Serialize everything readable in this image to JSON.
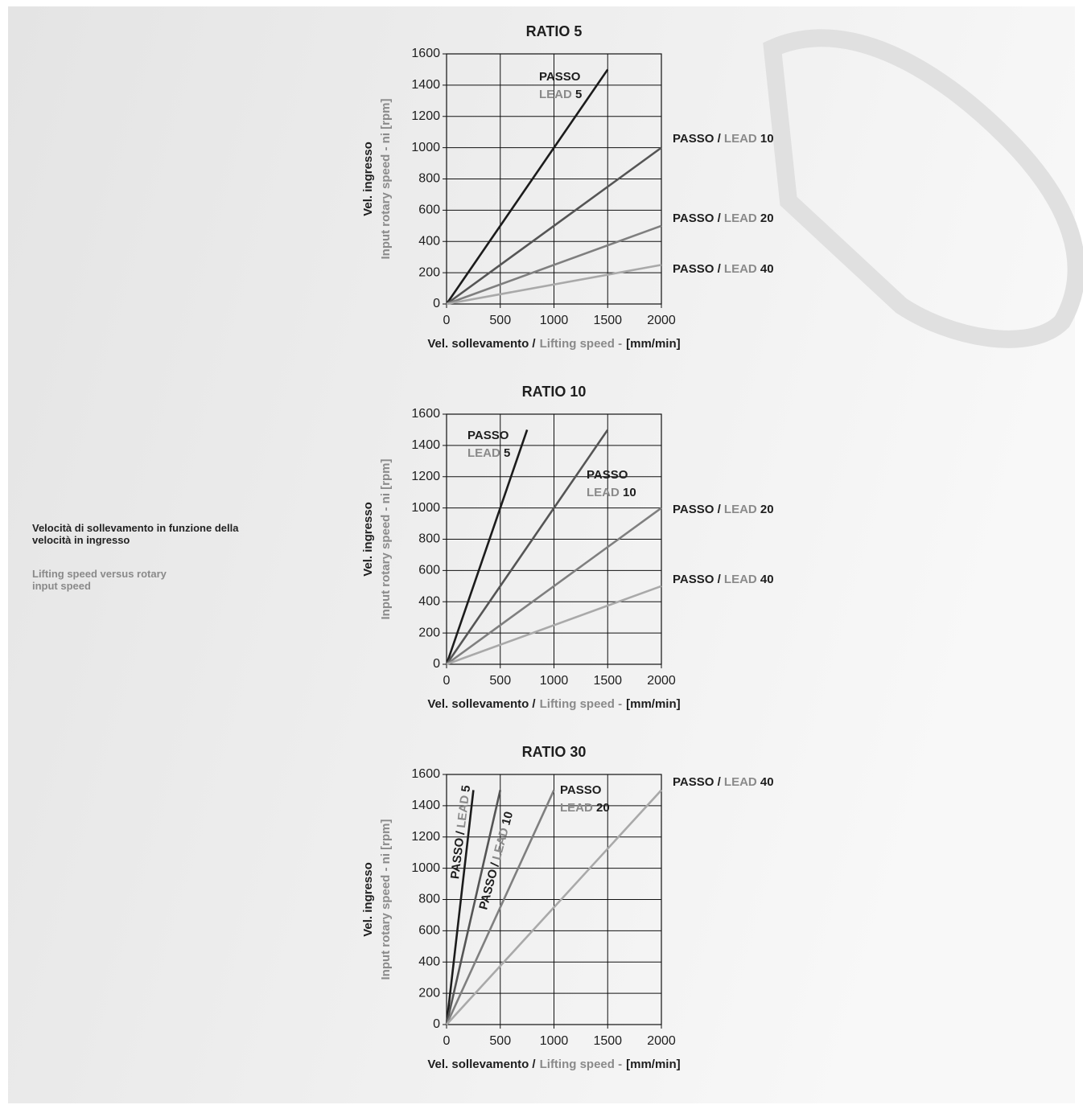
{
  "description": {
    "it": "Velocità di sollevamento in funzione della velocità in ingresso",
    "en": "Lifting speed versus rotary input speed"
  },
  "chart_data": [
    {
      "type": "line",
      "title": "RATIO 5",
      "xlabel": [
        "Vel. sollevamento /",
        "Lifting speed -",
        "[mm/min]"
      ],
      "ylabel": [
        "Vel. ingresso",
        "Input rotary speed - ni [rpm]"
      ],
      "xlim": [
        0,
        2000
      ],
      "ylim": [
        0,
        1600
      ],
      "xticks": [
        0,
        500,
        1000,
        1500,
        2000
      ],
      "yticks": [
        0,
        200,
        400,
        600,
        800,
        1000,
        1200,
        1400,
        1600
      ],
      "grid": true,
      "series": [
        {
          "name": "PASSO LEAD 5",
          "color": "#1c1c1c",
          "x": [
            0,
            1500
          ],
          "values": [
            0,
            1500
          ]
        },
        {
          "name": "PASSO / LEAD 10",
          "color": "#555555",
          "x": [
            0,
            2000
          ],
          "values": [
            0,
            1000
          ]
        },
        {
          "name": "PASSO / LEAD 20",
          "color": "#7f7f7f",
          "x": [
            0,
            2000
          ],
          "values": [
            0,
            500
          ]
        },
        {
          "name": "PASSO / LEAD 40",
          "color": "#a9a9a9",
          "x": [
            0,
            2000
          ],
          "values": [
            0,
            250
          ]
        }
      ]
    },
    {
      "type": "line",
      "title": "RATIO 10",
      "xlabel": [
        "Vel. sollevamento /",
        "Lifting speed -",
        "[mm/min]"
      ],
      "ylabel": [
        "Vel. ingresso",
        "Input rotary speed - ni [rpm]"
      ],
      "xlim": [
        0,
        2000
      ],
      "ylim": [
        0,
        1600
      ],
      "xticks": [
        0,
        500,
        1000,
        1500,
        2000
      ],
      "yticks": [
        0,
        200,
        400,
        600,
        800,
        1000,
        1200,
        1400,
        1600
      ],
      "grid": true,
      "series": [
        {
          "name": "PASSO LEAD 5",
          "color": "#1c1c1c",
          "x": [
            0,
            750
          ],
          "values": [
            0,
            1500
          ]
        },
        {
          "name": "PASSO LEAD 10",
          "color": "#555555",
          "x": [
            0,
            1500
          ],
          "values": [
            0,
            1500
          ]
        },
        {
          "name": "PASSO / LEAD 20",
          "color": "#7f7f7f",
          "x": [
            0,
            2000
          ],
          "values": [
            0,
            1000
          ]
        },
        {
          "name": "PASSO / LEAD 40",
          "color": "#a9a9a9",
          "x": [
            0,
            2000
          ],
          "values": [
            0,
            500
          ]
        }
      ]
    },
    {
      "type": "line",
      "title": "RATIO 30",
      "xlabel": [
        "Vel. sollevamento /",
        "Lifting speed -",
        "[mm/min]"
      ],
      "ylabel": [
        "Vel. ingresso",
        "Input rotary speed - ni [rpm]"
      ],
      "xlim": [
        0,
        2000
      ],
      "ylim": [
        0,
        1600
      ],
      "xticks": [
        0,
        500,
        1000,
        1500,
        2000
      ],
      "yticks": [
        0,
        200,
        400,
        600,
        800,
        1000,
        1200,
        1400,
        1600
      ],
      "grid": true,
      "series": [
        {
          "name": "PASSO / LEAD 5",
          "color": "#1c1c1c",
          "x": [
            0,
            250
          ],
          "values": [
            0,
            1500
          ]
        },
        {
          "name": "PASSO / LEAD 10",
          "color": "#555555",
          "x": [
            0,
            500
          ],
          "values": [
            0,
            1500
          ]
        },
        {
          "name": "PASSO LEAD 20",
          "color": "#7f7f7f",
          "x": [
            0,
            1000
          ],
          "values": [
            0,
            1500
          ]
        },
        {
          "name": "PASSO / LEAD 40",
          "color": "#a9a9a9",
          "x": [
            0,
            2000
          ],
          "values": [
            0,
            1500
          ]
        }
      ]
    }
  ]
}
